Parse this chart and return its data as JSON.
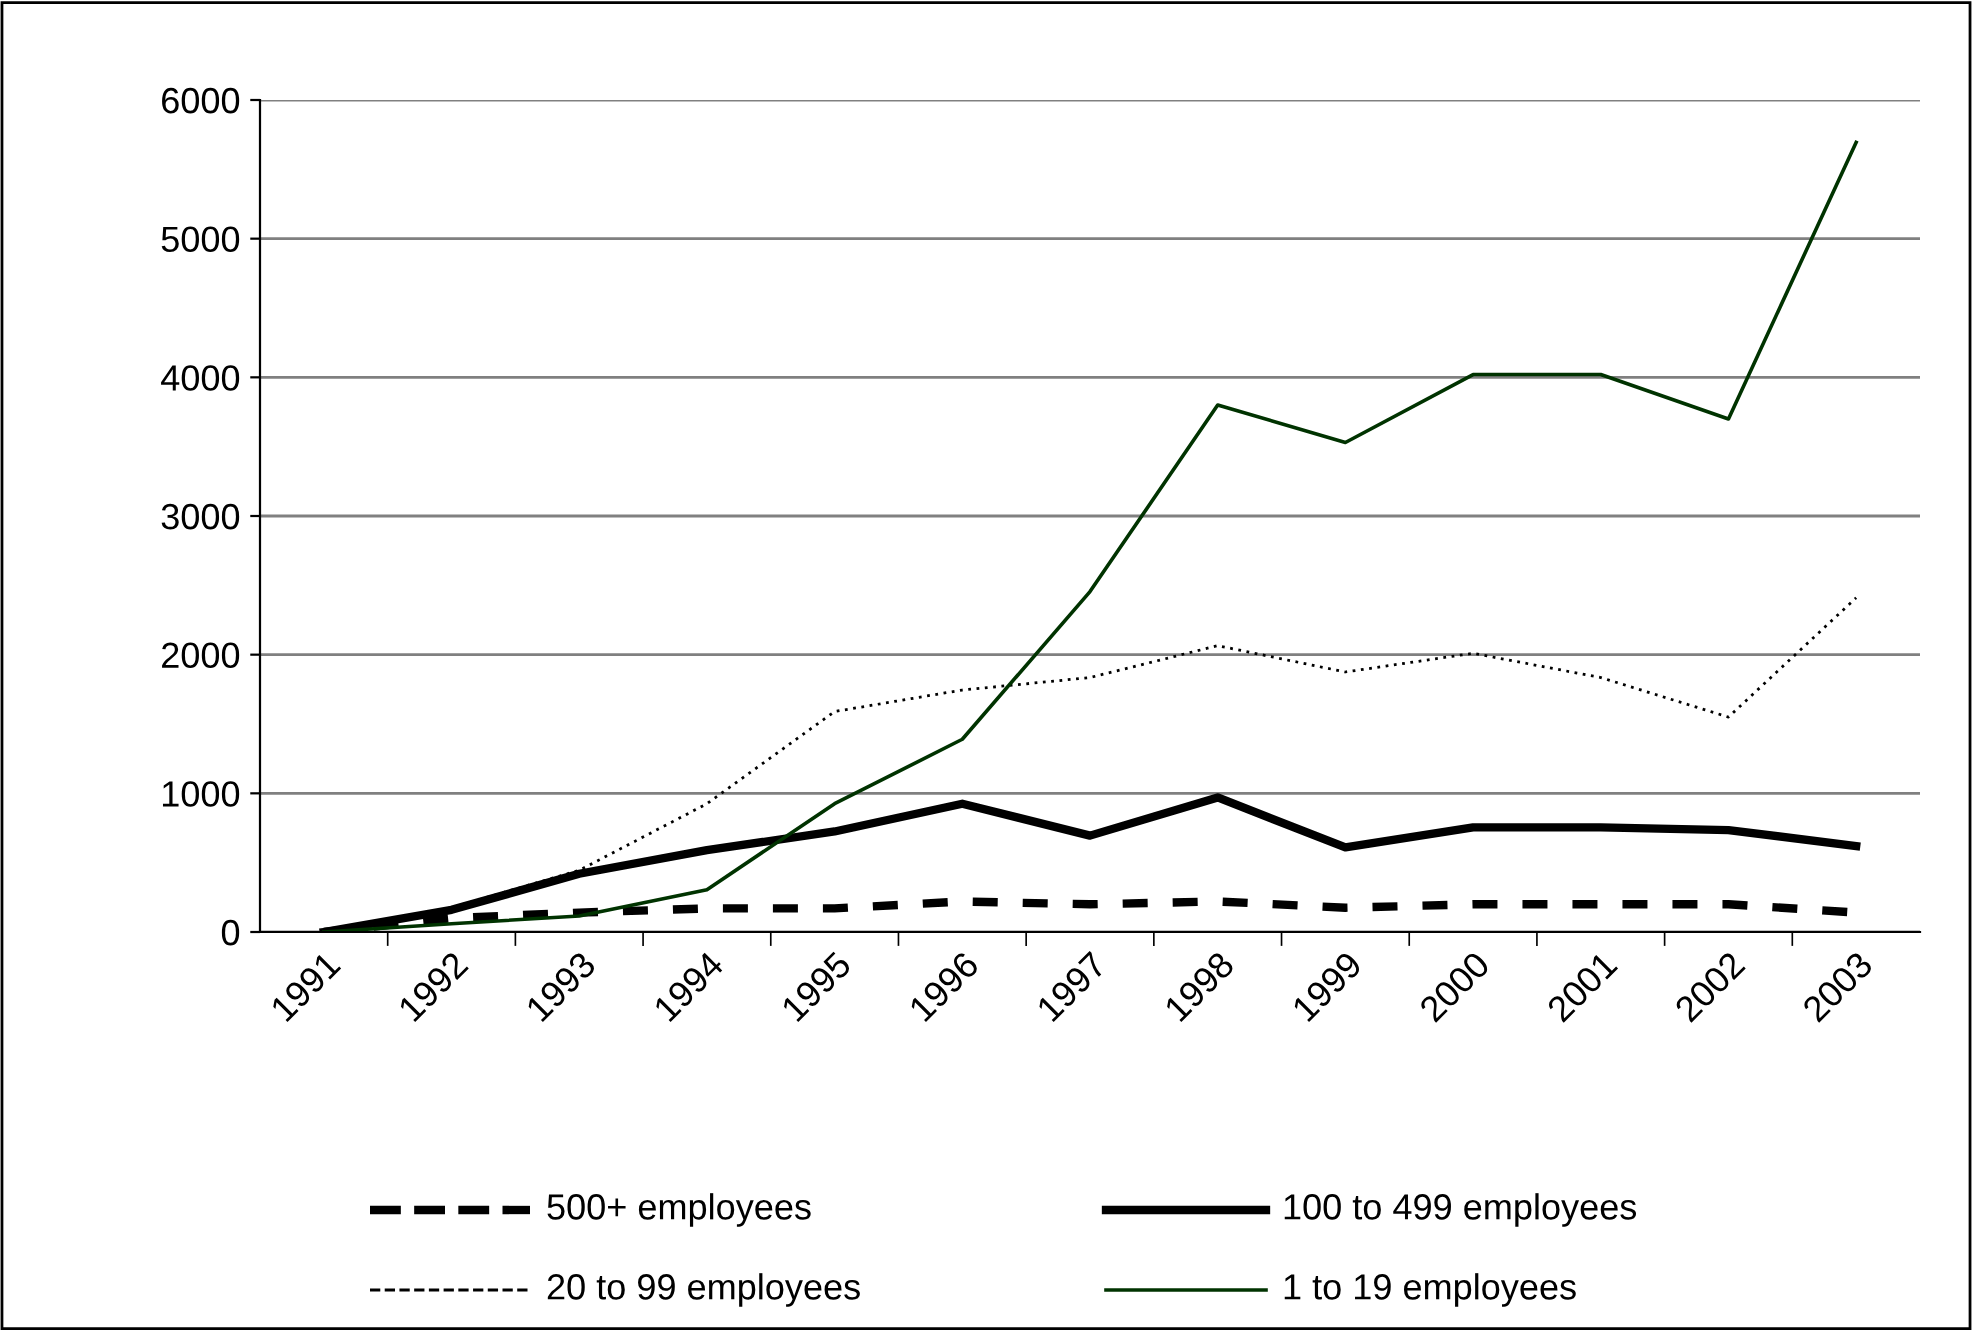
{
  "chart_data": {
    "type": "line",
    "categories": [
      "1991",
      "1992",
      "1993",
      "1994",
      "1995",
      "1996",
      "1997",
      "1998",
      "1999",
      "2000",
      "2001",
      "2002",
      "2003"
    ],
    "ylim": [
      0,
      6000
    ],
    "yticks": [
      0,
      1000,
      2000,
      3000,
      4000,
      5000,
      6000
    ],
    "grid": "y",
    "legend": "bottom",
    "marker": "none",
    "series": [
      {
        "name": "500+ employees",
        "color": "#000000",
        "line_style": "dashed",
        "values": [
          0,
          100,
          140,
          170,
          170,
          220,
          200,
          220,
          175,
          200,
          200,
          200,
          140
        ]
      },
      {
        "name": "100 to 499 employees",
        "color": "#000000",
        "line_style": "solid",
        "values": [
          0,
          160,
          420,
          590,
          725,
          925,
          695,
          970,
          610,
          755,
          755,
          735,
          620
        ]
      },
      {
        "name": "20 to 99 employees",
        "color": "#000000",
        "line_style": "dotted",
        "values": [
          0,
          175,
          445,
          925,
          1590,
          1745,
          1835,
          2065,
          1875,
          2010,
          1835,
          1550,
          2410
        ]
      },
      {
        "name": "1 to 19 employees",
        "color": "#003300",
        "line_style": "solid",
        "values": [
          0,
          60,
          115,
          305,
          925,
          1390,
          2455,
          3800,
          3530,
          4020,
          4020,
          3700,
          5695
        ]
      }
    ]
  }
}
